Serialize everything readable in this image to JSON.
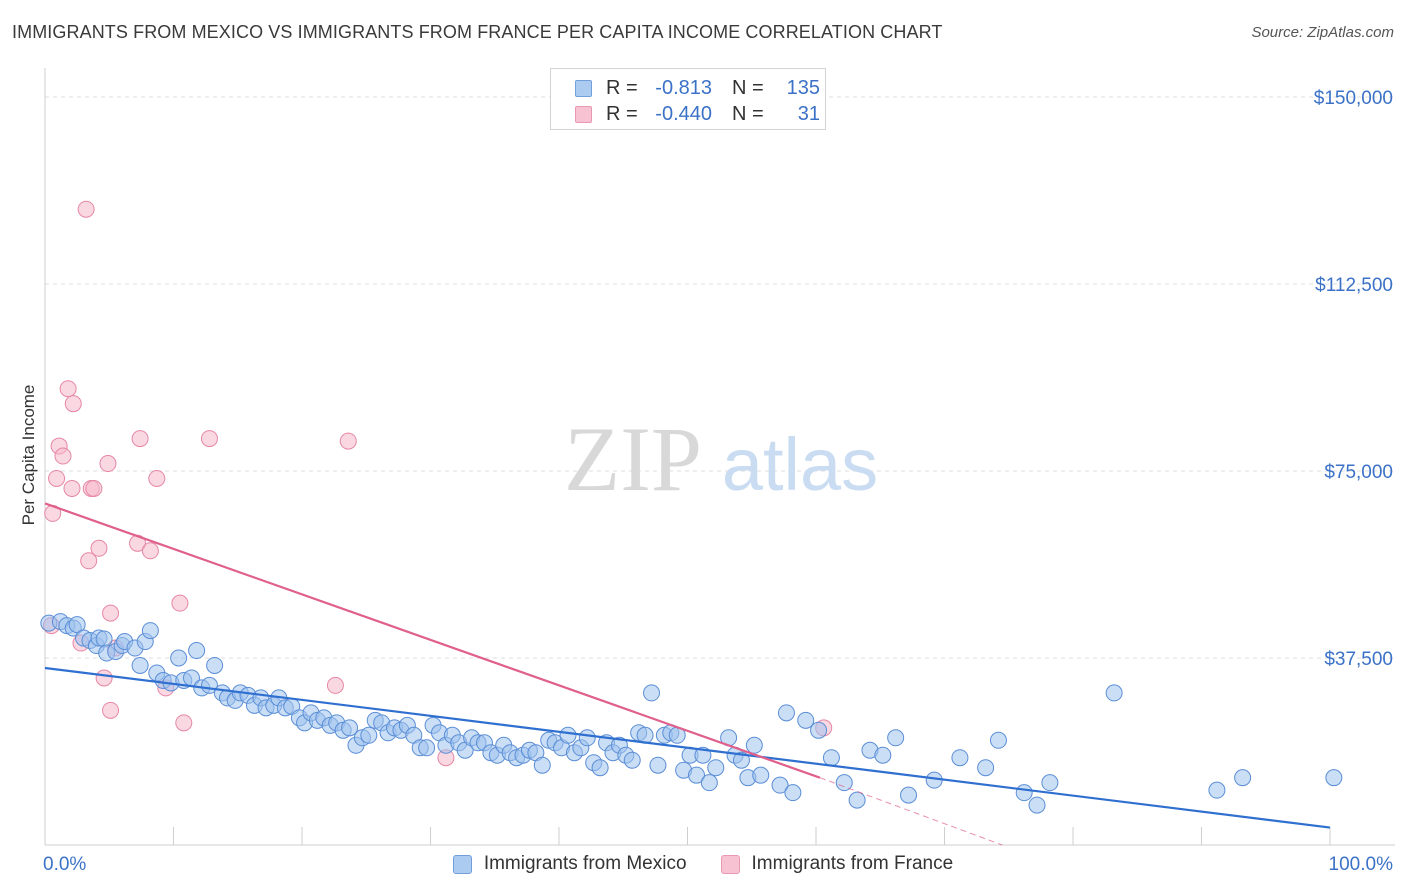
{
  "title": "IMMIGRANTS FROM MEXICO VS IMMIGRANTS FROM FRANCE PER CAPITA INCOME CORRELATION CHART",
  "source": "Source: ZipAtlas.com",
  "watermark": {
    "zip": "ZIP",
    "atlas": "atlas"
  },
  "colors": {
    "mexico_fill": "#9ec3ef",
    "mexico_stroke": "#5b8ed6",
    "mexico_line": "#2f6fd0",
    "france_fill": "#f6b8ca",
    "france_stroke": "#e687a6",
    "france_line": "#e0608b",
    "axis_text": "#3b72c7",
    "grid": "#dcdcdc"
  },
  "legend": {
    "rows": [
      {
        "r_label": "R =",
        "r_value": "-0.813",
        "n_label": "N =",
        "n_value": "135"
      },
      {
        "r_label": "R =",
        "r_value": "-0.440",
        "n_label": "N =",
        "n_value": "31"
      }
    ]
  },
  "chart_data": {
    "type": "scatter",
    "title": "IMMIGRANTS FROM MEXICO VS IMMIGRANTS FROM FRANCE PER CAPITA INCOME CORRELATION CHART",
    "ylabel": "Per Capita Income",
    "xlabel": "",
    "xlim": [
      0,
      100
    ],
    "ylim": [
      0,
      155000
    ],
    "x_tick_labels": [
      "0.0%",
      "100.0%"
    ],
    "y_ticks": [
      {
        "value": 37500,
        "label": "$37,500"
      },
      {
        "value": 75000,
        "label": "$75,000"
      },
      {
        "value": 112500,
        "label": "$112,500"
      },
      {
        "value": 150000,
        "label": "$150,000"
      }
    ],
    "series": [
      {
        "name": "Immigrants from Mexico",
        "r": -0.813,
        "n": 135,
        "trend": {
          "x0": 0,
          "y0": 35500,
          "x1": 100,
          "y1": 3500
        },
        "points": [
          [
            0.3,
            44500
          ],
          [
            1.2,
            44800
          ],
          [
            1.7,
            44000
          ],
          [
            2.2,
            43500
          ],
          [
            2.5,
            44200
          ],
          [
            3.0,
            41500
          ],
          [
            3.5,
            41000
          ],
          [
            4.0,
            40000
          ],
          [
            4.2,
            41500
          ],
          [
            4.6,
            41300
          ],
          [
            4.8,
            38500
          ],
          [
            5.5,
            38800
          ],
          [
            6.0,
            40000
          ],
          [
            6.2,
            40800
          ],
          [
            7.0,
            39500
          ],
          [
            7.4,
            36000
          ],
          [
            7.8,
            40800
          ],
          [
            8.2,
            43000
          ],
          [
            8.7,
            34500
          ],
          [
            9.2,
            33000
          ],
          [
            9.8,
            32500
          ],
          [
            10.4,
            37500
          ],
          [
            10.8,
            33000
          ],
          [
            11.4,
            33500
          ],
          [
            11.8,
            39000
          ],
          [
            12.2,
            31500
          ],
          [
            12.8,
            32000
          ],
          [
            13.2,
            36000
          ],
          [
            13.8,
            30500
          ],
          [
            14.2,
            29500
          ],
          [
            14.8,
            29000
          ],
          [
            15.2,
            30500
          ],
          [
            15.8,
            30000
          ],
          [
            16.3,
            28000
          ],
          [
            16.8,
            29500
          ],
          [
            17.2,
            27500
          ],
          [
            17.8,
            28000
          ],
          [
            18.2,
            29500
          ],
          [
            18.7,
            27500
          ],
          [
            19.2,
            27800
          ],
          [
            19.8,
            25500
          ],
          [
            20.2,
            24500
          ],
          [
            20.7,
            26500
          ],
          [
            21.2,
            25000
          ],
          [
            21.7,
            25500
          ],
          [
            22.2,
            24000
          ],
          [
            22.7,
            24500
          ],
          [
            23.2,
            23000
          ],
          [
            23.7,
            23500
          ],
          [
            24.2,
            20000
          ],
          [
            24.7,
            21500
          ],
          [
            25.2,
            22000
          ],
          [
            25.7,
            25000
          ],
          [
            26.2,
            24500
          ],
          [
            26.7,
            22500
          ],
          [
            27.2,
            23500
          ],
          [
            27.7,
            23000
          ],
          [
            28.2,
            24000
          ],
          [
            28.7,
            22000
          ],
          [
            29.2,
            19500
          ],
          [
            29.7,
            19500
          ],
          [
            30.2,
            24000
          ],
          [
            30.7,
            22500
          ],
          [
            31.2,
            20000
          ],
          [
            31.7,
            22000
          ],
          [
            32.2,
            20500
          ],
          [
            32.7,
            19000
          ],
          [
            33.2,
            21500
          ],
          [
            33.7,
            20500
          ],
          [
            34.2,
            20500
          ],
          [
            34.7,
            18500
          ],
          [
            35.2,
            18000
          ],
          [
            35.7,
            20000
          ],
          [
            36.2,
            18500
          ],
          [
            36.7,
            17500
          ],
          [
            37.2,
            18000
          ],
          [
            37.7,
            19000
          ],
          [
            38.2,
            18500
          ],
          [
            38.7,
            16000
          ],
          [
            39.2,
            21000
          ],
          [
            39.7,
            20500
          ],
          [
            40.2,
            19500
          ],
          [
            40.7,
            22000
          ],
          [
            41.2,
            18500
          ],
          [
            41.7,
            19500
          ],
          [
            42.2,
            21500
          ],
          [
            42.7,
            16500
          ],
          [
            43.2,
            15500
          ],
          [
            43.7,
            20500
          ],
          [
            44.2,
            18500
          ],
          [
            44.7,
            20000
          ],
          [
            45.2,
            18000
          ],
          [
            45.7,
            17000
          ],
          [
            46.2,
            22500
          ],
          [
            46.7,
            22000
          ],
          [
            47.2,
            30500
          ],
          [
            47.7,
            16000
          ],
          [
            48.2,
            22000
          ],
          [
            48.7,
            22500
          ],
          [
            49.2,
            22000
          ],
          [
            49.7,
            15000
          ],
          [
            50.2,
            18000
          ],
          [
            50.7,
            14000
          ],
          [
            51.2,
            18000
          ],
          [
            51.7,
            12500
          ],
          [
            52.2,
            15500
          ],
          [
            53.2,
            21500
          ],
          [
            53.7,
            18000
          ],
          [
            54.2,
            17000
          ],
          [
            54.7,
            13500
          ],
          [
            55.2,
            20000
          ],
          [
            55.7,
            14000
          ],
          [
            57.2,
            12000
          ],
          [
            57.7,
            26500
          ],
          [
            58.2,
            10500
          ],
          [
            59.2,
            25000
          ],
          [
            60.2,
            23000
          ],
          [
            61.2,
            17500
          ],
          [
            62.2,
            12500
          ],
          [
            63.2,
            9000
          ],
          [
            64.2,
            19000
          ],
          [
            65.2,
            18000
          ],
          [
            66.2,
            21500
          ],
          [
            67.2,
            10000
          ],
          [
            69.2,
            13000
          ],
          [
            71.2,
            17500
          ],
          [
            73.2,
            15500
          ],
          [
            74.2,
            21000
          ],
          [
            76.2,
            10500
          ],
          [
            77.2,
            8000
          ],
          [
            78.2,
            12500
          ],
          [
            83.2,
            30500
          ],
          [
            91.2,
            11000
          ],
          [
            93.2,
            13500
          ],
          [
            100.3,
            13500
          ]
        ]
      },
      {
        "name": "Immigrants from France",
        "r": -0.44,
        "n": 31,
        "trend": {
          "x0": 0,
          "y0": 68500,
          "x1": 60.3,
          "y1": 13500,
          "x2": 74.5,
          "y2": 0
        },
        "points": [
          [
            0.5,
            44000
          ],
          [
            0.6,
            66500
          ],
          [
            0.9,
            73500
          ],
          [
            1.1,
            80000
          ],
          [
            1.4,
            78000
          ],
          [
            1.8,
            91500
          ],
          [
            2.1,
            71500
          ],
          [
            2.2,
            88500
          ],
          [
            2.8,
            40500
          ],
          [
            3.2,
            127500
          ],
          [
            3.4,
            57000
          ],
          [
            3.6,
            71500
          ],
          [
            3.8,
            71500
          ],
          [
            4.2,
            59500
          ],
          [
            4.6,
            33500
          ],
          [
            4.9,
            76500
          ],
          [
            5.1,
            27000
          ],
          [
            5.1,
            46500
          ],
          [
            5.5,
            39500
          ],
          [
            7.2,
            60500
          ],
          [
            7.4,
            81500
          ],
          [
            8.2,
            59000
          ],
          [
            8.7,
            73500
          ],
          [
            9.4,
            31500
          ],
          [
            10.5,
            48500
          ],
          [
            10.8,
            24500
          ],
          [
            12.8,
            81500
          ],
          [
            22.6,
            32000
          ],
          [
            23.6,
            81000
          ],
          [
            31.2,
            17500
          ],
          [
            60.6,
            23500
          ]
        ]
      }
    ]
  }
}
